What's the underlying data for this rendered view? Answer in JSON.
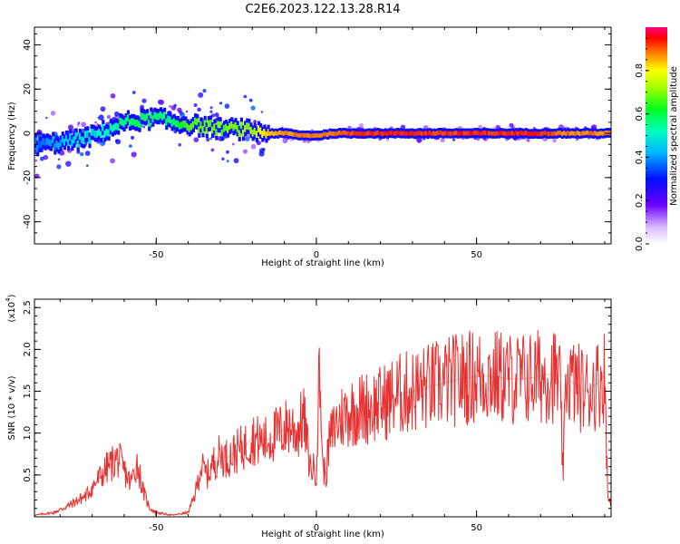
{
  "title": "C2E6.2023.122.13.28.R14",
  "chart_data": [
    {
      "type": "heatmap",
      "xlabel": "Height of straight line (km)",
      "ylabel": "Frequency (Hz)",
      "xlim": [
        -88,
        92
      ],
      "ylim": [
        -50,
        48
      ],
      "xticks": [
        -50,
        0,
        50
      ],
      "yticks": [
        -40,
        -20,
        0,
        20,
        40
      ],
      "colorbar": {
        "label": "Normalized spectral amplitude",
        "range": [
          0.0,
          1.0
        ],
        "ticks": [
          "0.0",
          "0.2",
          "0.4",
          "0.6",
          "0.8"
        ]
      },
      "ridge": {
        "x": [
          -86,
          -80,
          -75,
          -70,
          -65,
          -60,
          -55,
          -50,
          -45,
          -40,
          -35,
          -30,
          -25,
          -20,
          -15,
          -10,
          -5,
          0,
          5,
          10,
          20,
          30,
          40,
          50,
          60,
          70,
          80,
          90
        ],
        "freq": [
          -5,
          -4,
          -3,
          -1,
          2,
          5,
          6,
          7,
          5,
          4,
          3,
          2,
          2,
          1,
          0,
          0,
          -1,
          -1,
          0,
          0,
          0,
          0,
          0,
          0,
          0,
          0,
          0,
          0
        ],
        "amplitude": [
          0.4,
          0.45,
          0.5,
          0.5,
          0.55,
          0.6,
          0.6,
          0.6,
          0.6,
          0.7,
          0.7,
          0.7,
          0.72,
          0.75,
          0.85,
          0.9,
          0.9,
          0.9,
          0.92,
          0.95,
          0.95,
          0.95,
          0.95,
          0.95,
          0.95,
          0.95,
          0.9,
          0.9
        ]
      }
    },
    {
      "type": "line",
      "xlabel": "Height of straight line (km)",
      "ylabel": "SNR (10 * v/v)",
      "y_multiplier": "(x10",
      "y_multiplier_exp": "4",
      "xlim": [
        -88,
        92
      ],
      "ylim": [
        0,
        2.6
      ],
      "xticks": [
        -50,
        0,
        50
      ],
      "yticks": [
        0.5,
        1.0,
        1.5,
        2.0,
        2.5
      ],
      "color": "#e83030",
      "series": [
        {
          "x": [
            -88,
            -82,
            -78,
            -72,
            -68,
            -65,
            -62,
            -60,
            -58,
            -56,
            -54,
            -52,
            -50,
            -45,
            -40,
            -38,
            -36,
            -34,
            -32,
            -30,
            -28,
            -26,
            -24,
            -22,
            -20,
            -18,
            -16,
            -14,
            -12,
            -10,
            -8,
            -6,
            -4,
            -2,
            0,
            1,
            2,
            3,
            4,
            6,
            8,
            10,
            15,
            20,
            25,
            30,
            35,
            40,
            45,
            50,
            55,
            60,
            65,
            70,
            72,
            74,
            76,
            77,
            78,
            80,
            82,
            84,
            86,
            88,
            90,
            91
          ],
          "y": [
            0.02,
            0.05,
            0.12,
            0.25,
            0.45,
            0.6,
            0.7,
            0.55,
            0.4,
            0.65,
            0.3,
            0.1,
            0.05,
            0.02,
            0.05,
            0.25,
            0.6,
            0.5,
            0.65,
            0.75,
            0.7,
            0.75,
            0.8,
            0.85,
            0.95,
            0.9,
            0.9,
            0.95,
            1.0,
            1.05,
            1.1,
            1.0,
            1.2,
            0.6,
            0.55,
            1.8,
            0.6,
            0.5,
            0.9,
            1.1,
            1.2,
            1.25,
            1.3,
            1.35,
            1.45,
            1.5,
            1.55,
            1.6,
            1.65,
            1.68,
            1.68,
            1.65,
            1.65,
            1.68,
            1.7,
            1.7,
            1.6,
            0.5,
            1.7,
            1.6,
            1.55,
            1.5,
            1.55,
            1.6,
            1.7,
            0.2
          ]
        }
      ]
    }
  ]
}
